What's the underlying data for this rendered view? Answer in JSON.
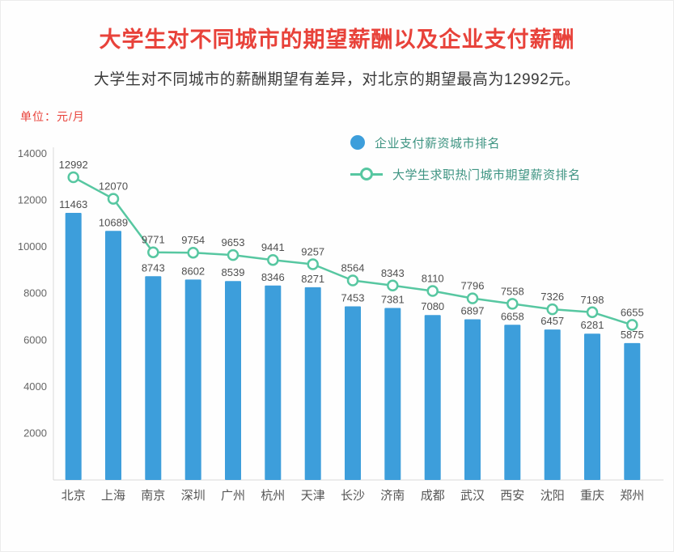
{
  "page": {
    "title": "大学生对不同城市的期望薪酬以及企业支付薪酬",
    "subtitle": "大学生对不同城市的薪酬期望有差异，对北京的期望最高为12992元。",
    "unit_label": "单位：元/月"
  },
  "legend": {
    "bar_label": "企业支付薪资城市排名",
    "line_label": "大学生求职热门城市期望薪资排名"
  },
  "colors": {
    "bar": "#3d9edb",
    "line": "#57c7a1",
    "title_accent": "#e8423a",
    "legend_text": "#3e9482",
    "data_label": "#4f4f4f",
    "axis": "#d9d9d9"
  },
  "chart_data": {
    "type": "bar+line",
    "title": "大学生对不同城市的期望薪酬以及企业支付薪酬",
    "subtitle": "大学生对不同城市的薪酬期望有差异，对北京的期望最高为12992元。",
    "unit": "单位：元/月",
    "categories": [
      "北京",
      "上海",
      "南京",
      "深圳",
      "广州",
      "杭州",
      "天津",
      "长沙",
      "济南",
      "成都",
      "武汉",
      "西安",
      "沈阳",
      "重庆",
      "郑州"
    ],
    "series": [
      {
        "name": "企业支付薪资城市排名",
        "type": "bar",
        "values": [
          11463,
          10689,
          8743,
          8602,
          8539,
          8346,
          8271,
          7453,
          7381,
          7080,
          6897,
          6658,
          6457,
          6281,
          5875
        ]
      },
      {
        "name": "大学生求职热门城市期望薪资排名",
        "type": "line",
        "values": [
          12992,
          12070,
          9771,
          9754,
          9653,
          9441,
          9257,
          8564,
          8343,
          8110,
          7796,
          7558,
          7326,
          7198,
          6655
        ]
      }
    ],
    "ylim": [
      0,
      14000
    ],
    "yticks": [
      2000,
      4000,
      6000,
      8000,
      10000,
      12000,
      14000
    ],
    "grid": false,
    "legend_position": "top-right"
  }
}
